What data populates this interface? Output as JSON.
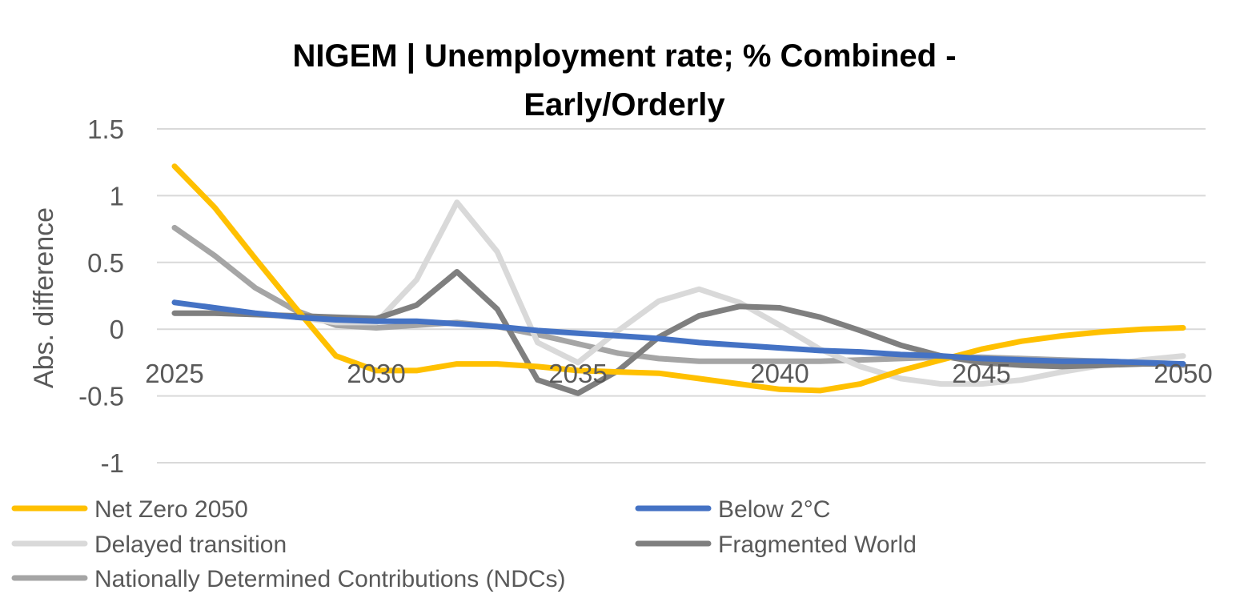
{
  "chart_data": {
    "type": "line",
    "title_lines": [
      "NIGEM | Unemployment rate; % Combined -",
      "Early/Orderly"
    ],
    "xlabel": "",
    "ylabel": "Abs. difference",
    "ylim": [
      -1,
      1.5
    ],
    "yticks": [
      1.5,
      1,
      0.5,
      0,
      -0.5,
      -1
    ],
    "ytick_labels": [
      "1.5",
      "1",
      "0.5",
      "0",
      "-0.5",
      "-1"
    ],
    "xlim": [
      2025,
      2050
    ],
    "xticks": [
      2025,
      2030,
      2035,
      2040,
      2045,
      2050
    ],
    "xtick_labels": [
      "2025",
      "2030",
      "2035",
      "2040",
      "2045",
      "2050"
    ],
    "grid": true,
    "legend_position": "bottom",
    "x": [
      2025,
      2026,
      2027,
      2028,
      2029,
      2030,
      2031,
      2032,
      2033,
      2034,
      2035,
      2036,
      2037,
      2038,
      2039,
      2040,
      2041,
      2042,
      2043,
      2044,
      2045,
      2046,
      2047,
      2048,
      2049,
      2050
    ],
    "series": [
      {
        "name": "Net Zero 2050",
        "color": "#FFC000",
        "values": [
          1.22,
          0.91,
          0.53,
          0.16,
          -0.2,
          -0.31,
          -0.31,
          -0.26,
          -0.26,
          -0.28,
          -0.31,
          -0.32,
          -0.33,
          -0.37,
          -0.41,
          -0.45,
          -0.46,
          -0.41,
          -0.31,
          -0.23,
          -0.15,
          -0.09,
          -0.05,
          -0.02,
          0.0,
          0.01
        ]
      },
      {
        "name": "Below 2°C",
        "color": "#4472C4",
        "values": [
          0.2,
          0.16,
          0.12,
          0.09,
          0.07,
          0.06,
          0.06,
          0.04,
          0.02,
          -0.01,
          -0.03,
          -0.05,
          -0.07,
          -0.1,
          -0.12,
          -0.14,
          -0.16,
          -0.17,
          -0.19,
          -0.2,
          -0.22,
          -0.23,
          -0.24,
          -0.24,
          -0.25,
          -0.26
        ]
      },
      {
        "name": "Delayed transition",
        "color": "#D9D9D9",
        "values": [
          0.12,
          0.12,
          0.11,
          0.09,
          0.05,
          0.05,
          0.37,
          0.95,
          0.58,
          -0.1,
          -0.25,
          -0.01,
          0.21,
          0.3,
          0.2,
          0.03,
          -0.15,
          -0.28,
          -0.37,
          -0.41,
          -0.41,
          -0.38,
          -0.32,
          -0.27,
          -0.23,
          -0.2
        ]
      },
      {
        "name": "Fragmented World",
        "color": "#7F7F7F",
        "values": [
          0.12,
          0.12,
          0.11,
          0.1,
          0.09,
          0.08,
          0.18,
          0.43,
          0.15,
          -0.38,
          -0.48,
          -0.31,
          -0.06,
          0.1,
          0.17,
          0.16,
          0.09,
          -0.01,
          -0.12,
          -0.2,
          -0.25,
          -0.27,
          -0.28,
          -0.27,
          -0.26,
          -0.26
        ]
      },
      {
        "name": "Nationally Determined Contributions (NDCs)",
        "color": "#A5A5A5",
        "values": [
          0.76,
          0.55,
          0.31,
          0.14,
          0.03,
          0.01,
          0.03,
          0.05,
          0.02,
          -0.04,
          -0.11,
          -0.18,
          -0.22,
          -0.24,
          -0.24,
          -0.24,
          -0.24,
          -0.23,
          -0.22,
          -0.21,
          -0.21,
          -0.22,
          -0.23,
          -0.24,
          -0.25,
          -0.27
        ]
      }
    ]
  }
}
